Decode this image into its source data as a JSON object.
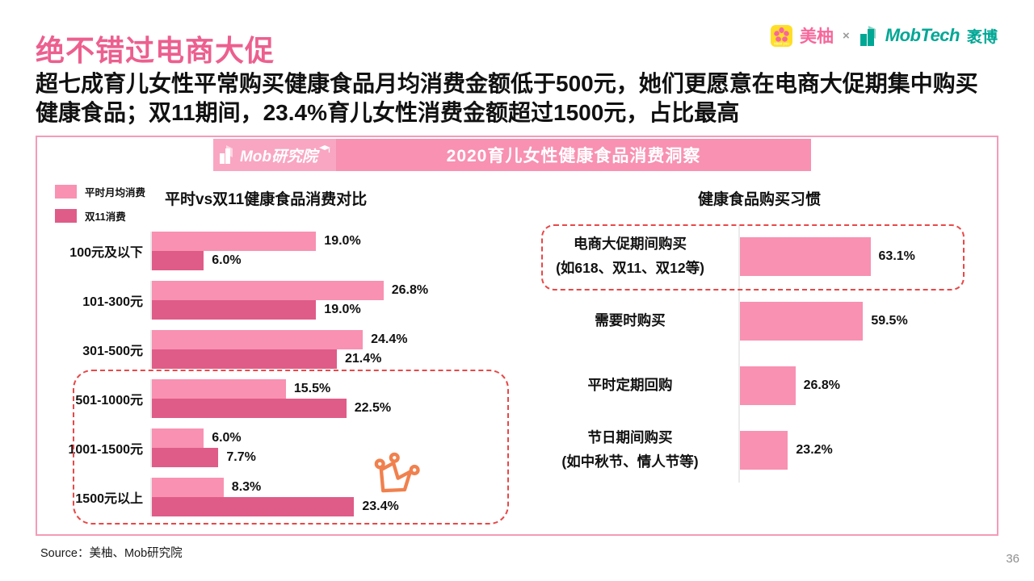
{
  "page": {
    "title": "绝不错过电商大促",
    "subtitle": "超七成育儿女性平常购买健康食品月均消费金额低于500元，她们更愿意在电商大促期集中购买健康食品；双11期间，23.4%育儿女性消费金额超过1500元，占比最高",
    "source": "Source：美柚、Mob研究院",
    "page_number": "36"
  },
  "brand": {
    "meiyou_label": "美柚",
    "cross": "×",
    "mobtech_label": "MobTech",
    "maobo_label": "袤博"
  },
  "banner": {
    "logo_text": "Mob研究院",
    "title": "2020育儿女性健康食品消费洞察"
  },
  "icons": {
    "meiyou_app": "meiyou-flower-app-icon",
    "mobtech": "teal-building-icon",
    "mob_institute": "white-building-icon",
    "crown": "orange-crown-icon"
  },
  "colors": {
    "title_pink": "#EC5F8F",
    "bar_light_pink": "#F891B2",
    "bar_dark_pink": "#E05C88",
    "banner_logo_bg": "#F9A6C2",
    "panel_border": "#F49BB8",
    "highlight_dash_red": "#E94747",
    "crown_orange": "#F0814E",
    "brand_teal": "#00A795",
    "brand_pink": "#F8679B"
  },
  "chart_data": [
    {
      "type": "bar",
      "orientation": "horizontal",
      "title": "平时vs双11健康食品消费对比",
      "unit": "%",
      "xlim": [
        0,
        28
      ],
      "legend": [
        {
          "label": "平时月均消费",
          "color": "#F891B2"
        },
        {
          "label": "双11消费",
          "color": "#E05C88"
        }
      ],
      "rows": [
        {
          "category": "100元及以下",
          "normal": 19.0,
          "normal_label": "19.0%",
          "double11": 6.0,
          "double11_label": "6.0%"
        },
        {
          "category": "101-300元",
          "normal": 26.8,
          "normal_label": "26.8%",
          "double11": 19.0,
          "double11_label": "19.0%"
        },
        {
          "category": "301-500元",
          "normal": 24.4,
          "normal_label": "24.4%",
          "double11": 21.4,
          "double11_label": "21.4%"
        },
        {
          "category": "501-1000元",
          "normal": 15.5,
          "normal_label": "15.5%",
          "double11": 22.5,
          "double11_label": "22.5%"
        },
        {
          "category": "1001-1500元",
          "normal": 6.0,
          "normal_label": "6.0%",
          "double11": 7.7,
          "double11_label": "7.7%"
        },
        {
          "category": "1500元以上",
          "normal": 8.3,
          "normal_label": "8.3%",
          "double11": 23.4,
          "double11_label": "23.4%"
        }
      ],
      "highlighted_categories": [
        "501-1000元",
        "1001-1500元",
        "1500元以上"
      ]
    },
    {
      "type": "bar",
      "orientation": "horizontal",
      "title": "健康食品购买习惯",
      "unit": "%",
      "xlim": [
        0,
        100
      ],
      "rows": [
        {
          "label": "电商大促期间购买",
          "sublabel": "(如618、双11、双12等)",
          "value": 63.1,
          "value_label": "63.1%"
        },
        {
          "label": "需要时购买",
          "sublabel": "",
          "value": 59.5,
          "value_label": "59.5%"
        },
        {
          "label": "平时定期回购",
          "sublabel": "",
          "value": 26.8,
          "value_label": "26.8%"
        },
        {
          "label": "节日期间购买",
          "sublabel": "(如中秋节、情人节等)",
          "value": 23.2,
          "value_label": "23.2%"
        }
      ],
      "highlighted_categories": [
        "电商大促期间购买"
      ]
    }
  ]
}
